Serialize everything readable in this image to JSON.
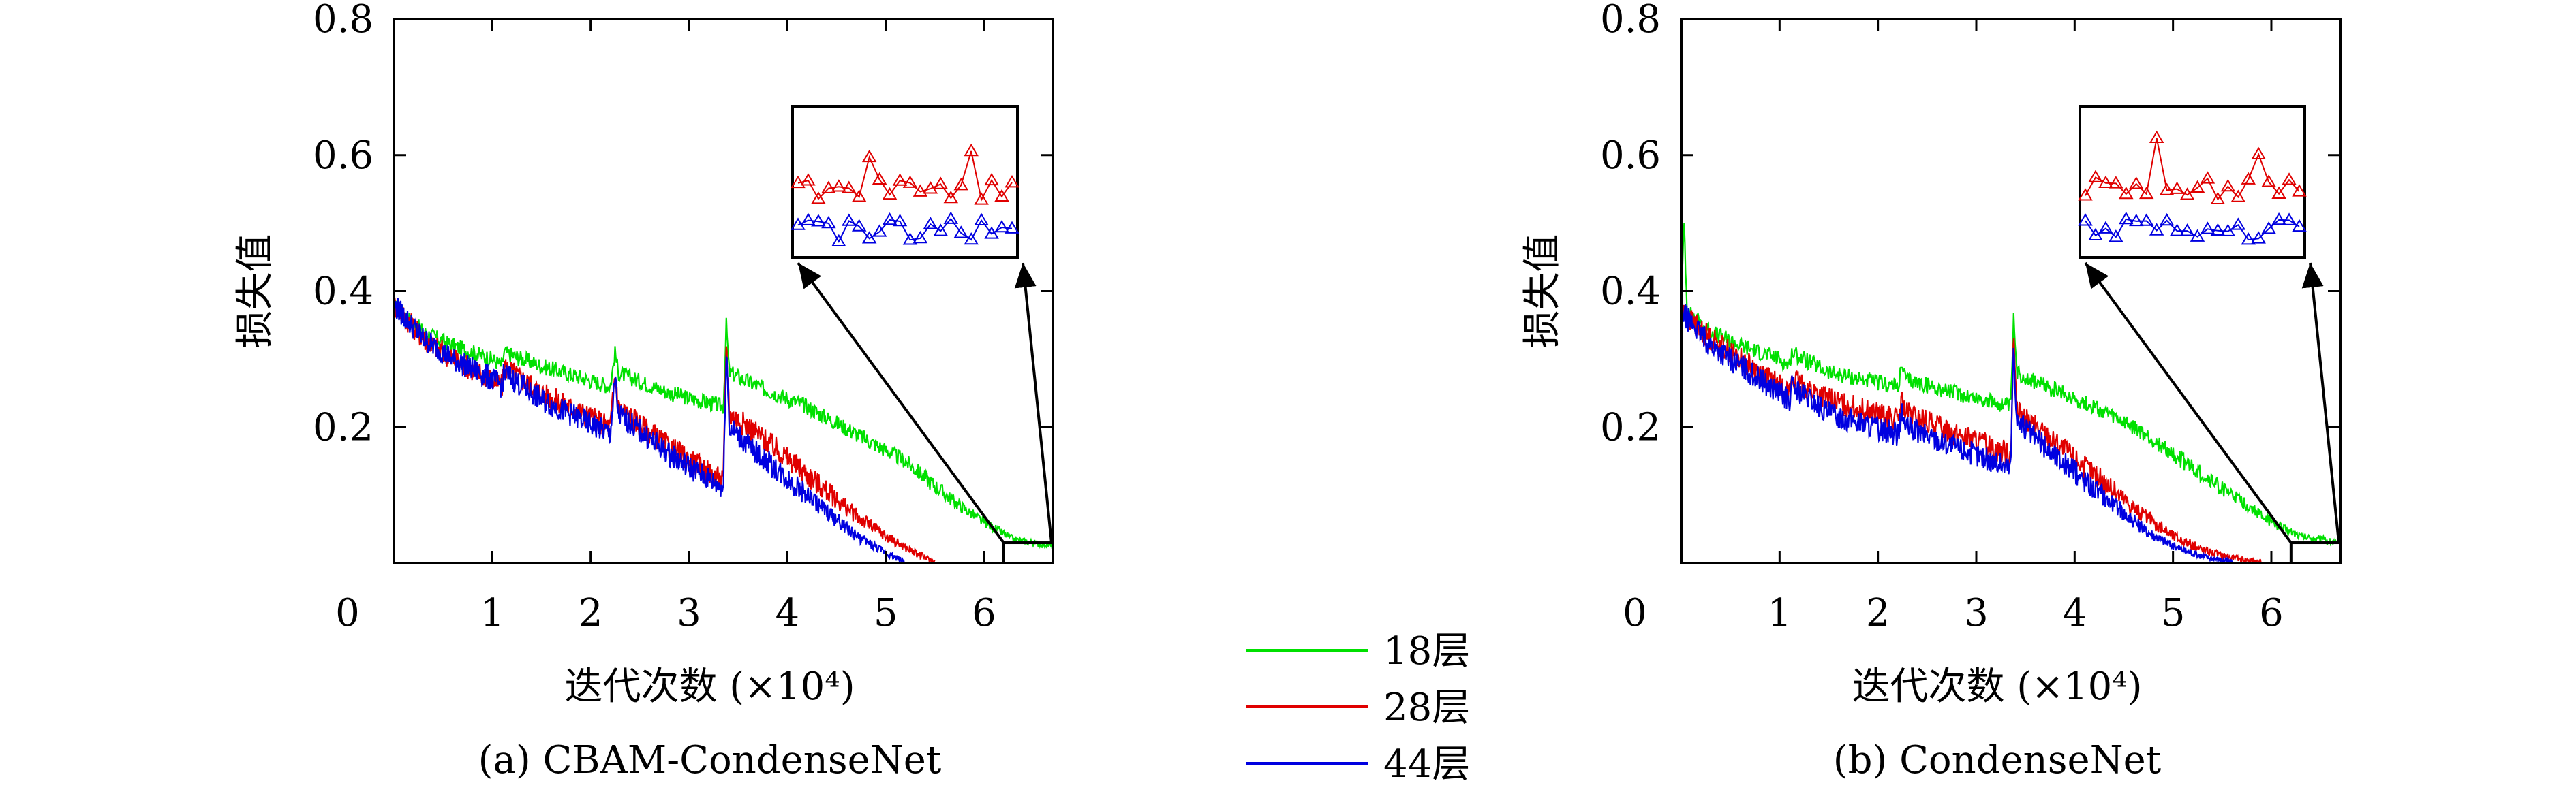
{
  "legend": {
    "entries": [
      {
        "label": "18层",
        "color": "#00e000"
      },
      {
        "label": "28层",
        "color": "#e00000"
      },
      {
        "label": "44层",
        "color": "#0000e0"
      }
    ]
  },
  "chart_data": [
    {
      "type": "line",
      "caption": "(a) CBAM-CondenseNet",
      "xlabel": "迭代次数 (×10⁴)",
      "ylabel": "损失值",
      "xlim": [
        0,
        6.7
      ],
      "ylim": [
        0,
        0.8
      ],
      "xticks": [
        "0",
        "1",
        "2",
        "3",
        "4",
        "5",
        "6"
      ],
      "yticks": [
        "0.2",
        "0.4",
        "0.6",
        "0.8"
      ],
      "grid": false,
      "inset": {
        "x_range": [
          6.2,
          6.7
        ],
        "y_range": [
          0.0,
          0.03
        ]
      },
      "series": [
        {
          "name": "18层",
          "color": "#00e000",
          "x": [
            0,
            0.3,
            0.6,
            1.0,
            1.1,
            1.12,
            1.5,
            2.2,
            2.25,
            2.28,
            2.8,
            3.35,
            3.38,
            3.41,
            3.7,
            4.2,
            4.7,
            5.2,
            5.7,
            6.0,
            6.3,
            6.7
          ],
          "y": [
            0.38,
            0.34,
            0.32,
            0.3,
            0.29,
            0.31,
            0.29,
            0.26,
            0.31,
            0.28,
            0.25,
            0.23,
            0.35,
            0.28,
            0.26,
            0.23,
            0.19,
            0.15,
            0.09,
            0.06,
            0.035,
            0.025
          ]
        },
        {
          "name": "28层",
          "color": "#e00000",
          "x": [
            0,
            0.3,
            0.6,
            1.0,
            1.1,
            1.12,
            1.5,
            2.2,
            2.25,
            2.28,
            2.8,
            3.35,
            3.38,
            3.41,
            3.7,
            4.2,
            4.7,
            5.0,
            5.3,
            5.5
          ],
          "y": [
            0.38,
            0.33,
            0.3,
            0.27,
            0.26,
            0.29,
            0.25,
            0.2,
            0.28,
            0.23,
            0.17,
            0.12,
            0.33,
            0.22,
            0.19,
            0.13,
            0.07,
            0.04,
            0.015,
            0.002
          ]
        },
        {
          "name": "44层",
          "color": "#0000e0",
          "x": [
            0,
            0.3,
            0.6,
            1.0,
            1.1,
            1.12,
            1.5,
            2.2,
            2.25,
            2.28,
            2.8,
            3.35,
            3.38,
            3.41,
            3.7,
            4.2,
            4.7,
            5.0,
            5.2
          ],
          "y": [
            0.38,
            0.33,
            0.3,
            0.27,
            0.26,
            0.28,
            0.24,
            0.19,
            0.27,
            0.22,
            0.16,
            0.11,
            0.32,
            0.2,
            0.16,
            0.1,
            0.04,
            0.015,
            0.002
          ]
        }
      ]
    },
    {
      "type": "line",
      "caption": "(b) CondenseNet",
      "xlabel": "迭代次数 (×10⁴)",
      "ylabel": "损失值",
      "xlim": [
        0,
        6.7
      ],
      "ylim": [
        0,
        0.8
      ],
      "xticks": [
        "0",
        "1",
        "2",
        "3",
        "4",
        "5",
        "6"
      ],
      "yticks": [
        "0.2",
        "0.4",
        "0.6",
        "0.8"
      ],
      "grid": false,
      "inset": {
        "x_range": [
          6.2,
          6.7
        ],
        "y_range": [
          0.0,
          0.03
        ]
      },
      "series": [
        {
          "name": "18层",
          "color": "#00e000",
          "x": [
            0,
            0.03,
            0.06,
            0.3,
            0.6,
            1.0,
            1.1,
            1.12,
            1.5,
            2.2,
            2.25,
            2.28,
            2.8,
            3.35,
            3.38,
            3.41,
            3.7,
            4.2,
            4.7,
            5.2,
            5.7,
            6.0,
            6.3,
            6.7
          ],
          "y": [
            0.38,
            0.5,
            0.37,
            0.34,
            0.32,
            0.3,
            0.29,
            0.31,
            0.28,
            0.26,
            0.29,
            0.27,
            0.25,
            0.23,
            0.36,
            0.28,
            0.26,
            0.23,
            0.19,
            0.14,
            0.09,
            0.06,
            0.04,
            0.03
          ]
        },
        {
          "name": "28层",
          "color": "#e00000",
          "x": [
            0,
            0.3,
            0.6,
            1.0,
            1.1,
            1.12,
            1.5,
            2.2,
            2.25,
            2.28,
            2.8,
            3.35,
            3.38,
            3.41,
            3.7,
            4.2,
            4.7,
            5.0,
            5.3,
            5.6,
            5.9
          ],
          "y": [
            0.37,
            0.33,
            0.3,
            0.26,
            0.25,
            0.27,
            0.24,
            0.21,
            0.24,
            0.22,
            0.19,
            0.16,
            0.34,
            0.22,
            0.19,
            0.13,
            0.07,
            0.04,
            0.02,
            0.008,
            0.002
          ]
        },
        {
          "name": "44层",
          "color": "#0000e0",
          "x": [
            0,
            0.3,
            0.6,
            1.0,
            1.1,
            1.12,
            1.5,
            2.2,
            2.25,
            2.28,
            2.8,
            3.35,
            3.38,
            3.41,
            3.7,
            4.2,
            4.7,
            5.0,
            5.3,
            5.6
          ],
          "y": [
            0.37,
            0.32,
            0.29,
            0.25,
            0.24,
            0.26,
            0.22,
            0.19,
            0.22,
            0.2,
            0.17,
            0.14,
            0.33,
            0.21,
            0.17,
            0.11,
            0.05,
            0.025,
            0.01,
            0.002
          ]
        }
      ]
    }
  ]
}
